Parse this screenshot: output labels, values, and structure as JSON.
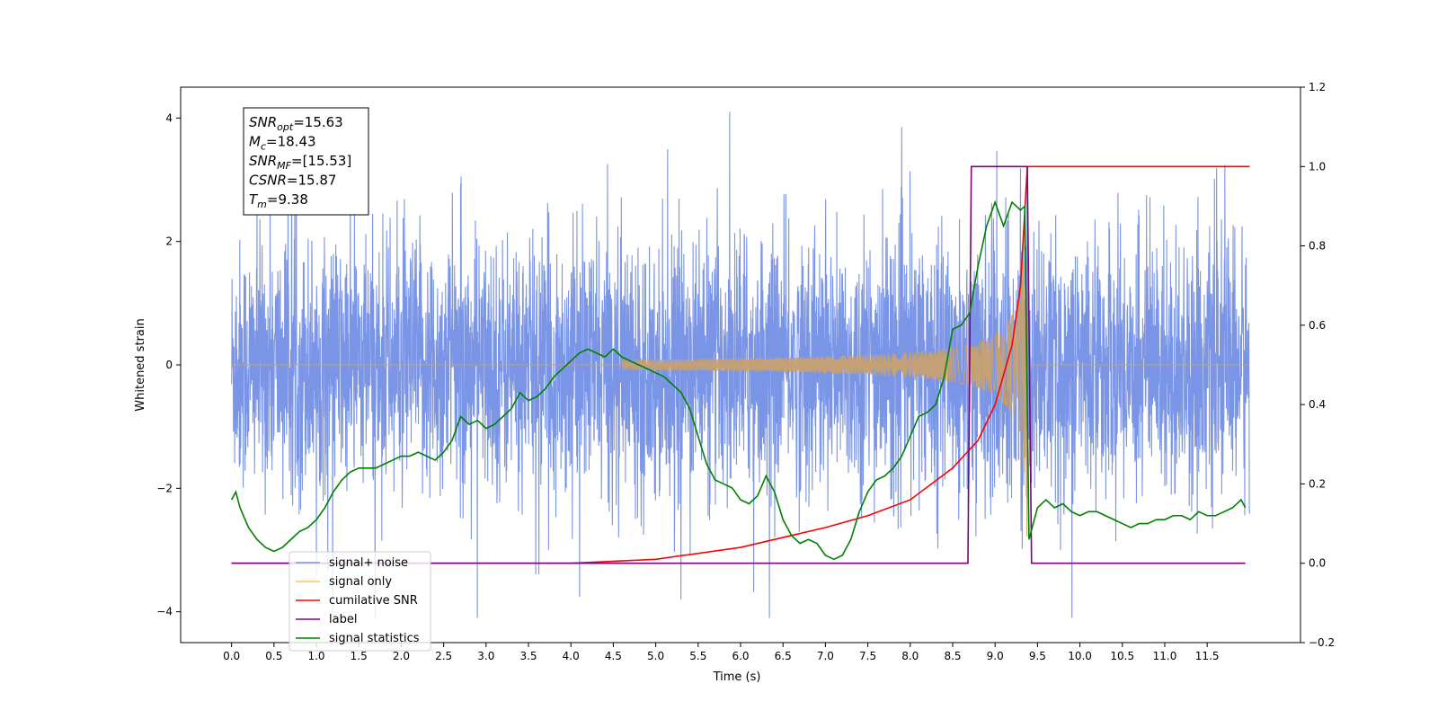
{
  "chart_data": {
    "type": "line",
    "xlabel": "Time (s)",
    "ylabel": "Whitened strain",
    "xlim": [
      -0.6,
      12.6
    ],
    "ylim": [
      -4.5,
      4.5
    ],
    "ylim_right": [
      -0.2,
      1.2
    ],
    "x_ticks": [
      "0.0",
      "0.5",
      "1.0",
      "1.5",
      "2.0",
      "2.5",
      "3.0",
      "3.5",
      "4.0",
      "4.5",
      "5.0",
      "5.5",
      "6.0",
      "6.5",
      "7.0",
      "7.5",
      "8.0",
      "8.5",
      "9.0",
      "9.5",
      "10.0",
      "10.5",
      "11.0",
      "11.5"
    ],
    "y_ticks": [
      "−4",
      "−2",
      "0",
      "2",
      "4"
    ],
    "y_ticks_right": [
      "−0.2",
      "0.0",
      "0.2",
      "0.4",
      "0.6",
      "0.8",
      "1.0",
      "1.2"
    ],
    "annotation": {
      "lines": [
        {
          "var": "SNR",
          "sub": "opt",
          "value": "=15.63"
        },
        {
          "var": "M",
          "sub": "c",
          "value": "=18.43"
        },
        {
          "var": "SNR",
          "sub": "MF",
          "value": "=[15.53]"
        },
        {
          "var": "CSNR",
          "sub": "",
          "value": "=15.87"
        },
        {
          "var": "T",
          "sub": "m",
          "value": "=9.38"
        }
      ]
    },
    "legend": {
      "placement": "lower-left",
      "entries": [
        {
          "label": "signal+ noise",
          "color": "#7b95e6"
        },
        {
          "label": "signal only",
          "color": "#ffc35a"
        },
        {
          "label": "cumilative SNR",
          "color": "#ff0000"
        },
        {
          "label": "label",
          "color": "#800080"
        },
        {
          "label": "signal statistics",
          "color": "#008000"
        }
      ]
    },
    "series": [
      {
        "name": "signal+ noise",
        "axis": "left",
        "color": "#7b95e6",
        "description_range": [
          0,
          12
        ],
        "noise_sigma": 1.0
      },
      {
        "name": "signal only",
        "axis": "left",
        "color": "#c8a070",
        "chirp": {
          "start": 4.6,
          "merger": 9.38,
          "peak_amp": 3.0
        }
      },
      {
        "name": "cumilative SNR",
        "axis": "right",
        "color": "#ff0000",
        "x": [
          0.0,
          4.0,
          5.0,
          6.0,
          7.0,
          7.5,
          8.0,
          8.5,
          8.8,
          9.0,
          9.2,
          9.3,
          9.38,
          12.0
        ],
        "y": [
          0.0,
          0.0,
          0.01,
          0.04,
          0.09,
          0.12,
          0.16,
          0.24,
          0.31,
          0.4,
          0.55,
          0.7,
          1.0,
          1.0
        ]
      },
      {
        "name": "label",
        "axis": "right",
        "color": "#800080",
        "x": [
          0.0,
          8.68,
          8.72,
          9.38,
          9.43,
          11.95
        ],
        "y": [
          0.0,
          0.0,
          1.0,
          1.0,
          0.0,
          0.0
        ]
      },
      {
        "name": "signal statistics",
        "axis": "right",
        "color": "#008000",
        "x": [
          0.0,
          0.05,
          0.1,
          0.2,
          0.3,
          0.4,
          0.5,
          0.6,
          0.7,
          0.8,
          0.9,
          1.0,
          1.1,
          1.2,
          1.3,
          1.4,
          1.5,
          1.6,
          1.7,
          1.8,
          1.9,
          2.0,
          2.1,
          2.2,
          2.3,
          2.4,
          2.5,
          2.6,
          2.7,
          2.8,
          2.9,
          3.0,
          3.1,
          3.2,
          3.3,
          3.4,
          3.5,
          3.6,
          3.7,
          3.8,
          3.9,
          4.0,
          4.1,
          4.2,
          4.3,
          4.4,
          4.5,
          4.6,
          4.7,
          4.8,
          4.9,
          5.0,
          5.1,
          5.2,
          5.3,
          5.4,
          5.5,
          5.6,
          5.7,
          5.8,
          5.9,
          6.0,
          6.1,
          6.2,
          6.3,
          6.4,
          6.5,
          6.6,
          6.7,
          6.8,
          6.9,
          7.0,
          7.1,
          7.2,
          7.3,
          7.4,
          7.5,
          7.6,
          7.7,
          7.8,
          7.9,
          8.0,
          8.1,
          8.2,
          8.3,
          8.4,
          8.5,
          8.6,
          8.7,
          8.8,
          8.9,
          9.0,
          9.1,
          9.2,
          9.3,
          9.35,
          9.4,
          9.5,
          9.6,
          9.7,
          9.8,
          9.9,
          10.0,
          10.1,
          10.2,
          10.3,
          10.4,
          10.5,
          10.6,
          10.7,
          10.8,
          10.9,
          11.0,
          11.1,
          11.2,
          11.3,
          11.4,
          11.5,
          11.6,
          11.7,
          11.8,
          11.9,
          11.95
        ],
        "y": [
          0.16,
          0.18,
          0.14,
          0.09,
          0.06,
          0.04,
          0.03,
          0.04,
          0.06,
          0.08,
          0.09,
          0.11,
          0.14,
          0.18,
          0.21,
          0.23,
          0.24,
          0.24,
          0.24,
          0.25,
          0.26,
          0.27,
          0.27,
          0.28,
          0.27,
          0.26,
          0.28,
          0.31,
          0.37,
          0.35,
          0.36,
          0.34,
          0.35,
          0.37,
          0.39,
          0.43,
          0.41,
          0.42,
          0.44,
          0.47,
          0.49,
          0.51,
          0.53,
          0.54,
          0.53,
          0.52,
          0.54,
          0.52,
          0.51,
          0.5,
          0.49,
          0.48,
          0.47,
          0.45,
          0.43,
          0.39,
          0.32,
          0.25,
          0.21,
          0.2,
          0.19,
          0.16,
          0.15,
          0.17,
          0.22,
          0.18,
          0.11,
          0.07,
          0.05,
          0.06,
          0.05,
          0.02,
          0.01,
          0.02,
          0.06,
          0.13,
          0.18,
          0.21,
          0.22,
          0.24,
          0.27,
          0.32,
          0.37,
          0.38,
          0.4,
          0.47,
          0.59,
          0.6,
          0.63,
          0.75,
          0.85,
          0.91,
          0.85,
          0.91,
          0.89,
          0.9,
          0.06,
          0.14,
          0.16,
          0.14,
          0.15,
          0.13,
          0.12,
          0.13,
          0.13,
          0.12,
          0.11,
          0.1,
          0.09,
          0.1,
          0.1,
          0.11,
          0.11,
          0.12,
          0.12,
          0.11,
          0.13,
          0.12,
          0.12,
          0.13,
          0.14,
          0.16,
          0.14
        ]
      }
    ]
  }
}
